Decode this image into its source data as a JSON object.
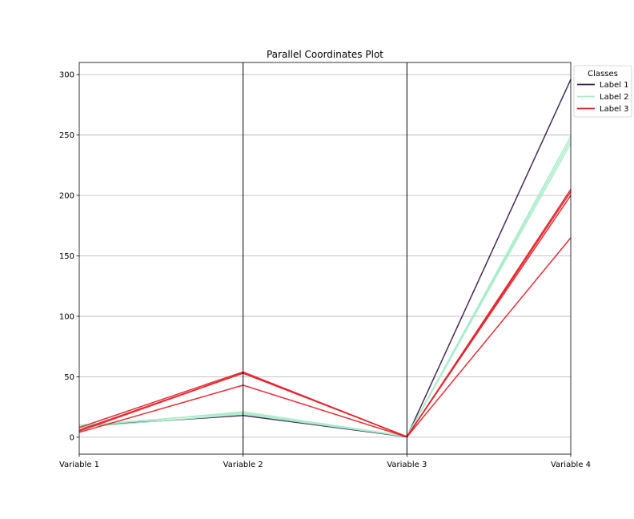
{
  "chart_data": {
    "type": "line",
    "subtype": "parallel-coordinates",
    "title": "Parallel Coordinates Plot",
    "categories": [
      "Variable 1",
      "Variable 2",
      "Variable 3",
      "Variable 4"
    ],
    "ylim": [
      -14,
      310
    ],
    "yticks": [
      0,
      50,
      100,
      150,
      200,
      250,
      300
    ],
    "grid": true,
    "legend": {
      "title": "Classes",
      "placement": "upper-right outside plot",
      "entries": [
        "Label 1",
        "Label 2",
        "Label 3"
      ]
    },
    "colors": {
      "Label 1": "#3b1f4f",
      "Label 2": "#a8ecc8",
      "Label 3": "#e0242b"
    },
    "series": [
      {
        "name": "Label 1",
        "values": [
          9,
          18,
          0.3,
          296
        ]
      },
      {
        "name": "Label 2",
        "values": [
          8,
          19,
          0.6,
          243
        ]
      },
      {
        "name": "Label 2",
        "values": [
          9,
          21,
          0.8,
          246
        ]
      },
      {
        "name": "Label 2",
        "values": [
          10,
          20,
          0.5,
          249
        ]
      },
      {
        "name": "Label 3",
        "values": [
          8,
          54,
          0.3,
          205
        ]
      },
      {
        "name": "Label 3",
        "values": [
          6,
          53,
          0.4,
          203
        ]
      },
      {
        "name": "Label 3",
        "values": [
          5,
          53,
          0.5,
          200
        ]
      },
      {
        "name": "Label 3",
        "values": [
          4,
          43,
          0.2,
          165
        ]
      }
    ]
  }
}
